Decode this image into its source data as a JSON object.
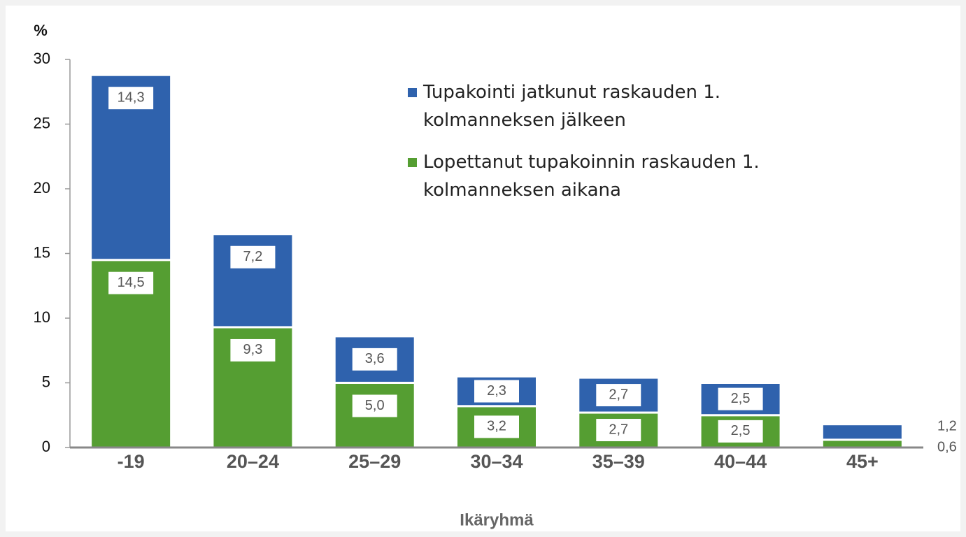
{
  "chart_data": {
    "type": "stacked_bar",
    "y_label": "%",
    "x_label": "Ikäryhmä",
    "categories": [
      "-19",
      "20–24",
      "25–29",
      "30–34",
      "35–39",
      "40–44",
      "45+"
    ],
    "series": [
      {
        "name": "Lopettanut tupakoinnin raskauden 1. kolmanneksen aikana",
        "color": "#559e32",
        "values": [
          14.5,
          9.3,
          5.0,
          3.2,
          2.7,
          2.5,
          0.6
        ],
        "value_labels": [
          "14,5",
          "9,3",
          "5,0",
          "3,2",
          "2,7",
          "2,5",
          "0,6"
        ]
      },
      {
        "name": "Tupakointi jatkunut raskauden 1. kolmanneksen jälkeen",
        "color": "#2f62ad",
        "values": [
          14.3,
          7.2,
          3.6,
          2.3,
          2.7,
          2.5,
          1.2
        ],
        "value_labels": [
          "14,3",
          "7,2",
          "3,6",
          "2,3",
          "2,7",
          "2,5",
          "1,2"
        ]
      }
    ],
    "ylim": [
      0,
      30
    ],
    "yticks": [
      0,
      5,
      10,
      15,
      20,
      25,
      30
    ],
    "legend": "top-right"
  }
}
